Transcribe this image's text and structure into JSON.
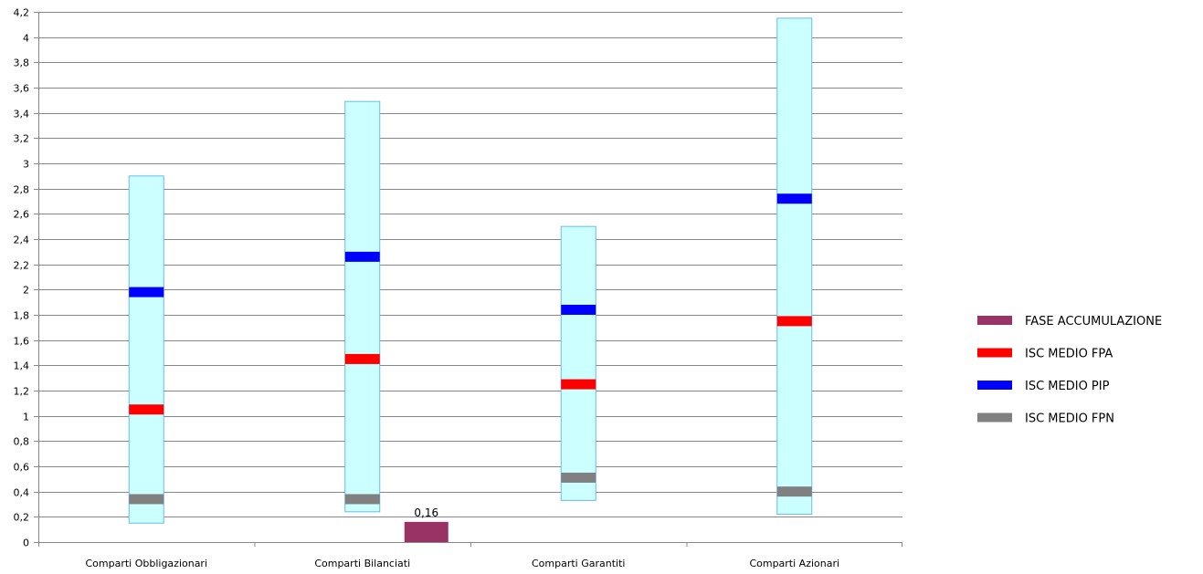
{
  "chart_data": {
    "type": "bar",
    "categories": [
      "Comparti Obbligazionari",
      "Comparti Bilanciati",
      "Comparti Garantiti",
      "Comparti Azionari"
    ],
    "ylim": [
      0,
      4.2
    ],
    "yticks": [
      0,
      0.2,
      0.4,
      0.6,
      0.8,
      1,
      1.2,
      1.4,
      1.6,
      1.8,
      2,
      2.2,
      2.4,
      2.6,
      2.8,
      3,
      3.2,
      3.4,
      3.6,
      3.8,
      4,
      4.2
    ],
    "ytick_labels": [
      "0",
      "0,2",
      "0,4",
      "0,6",
      "0,8",
      "1",
      "1,2",
      "1,4",
      "1,6",
      "1,8",
      "2",
      "2,2",
      "2,4",
      "2,6",
      "2,8",
      "3",
      "3,2",
      "3,4",
      "3,6",
      "3,8",
      "4",
      "4,2"
    ],
    "grid": true,
    "legend_position": "right",
    "ranges": [
      {
        "low": 0.15,
        "high": 2.9
      },
      {
        "low": 0.24,
        "high": 3.49
      },
      {
        "low": 0.33,
        "high": 2.5
      },
      {
        "low": 0.22,
        "high": 4.15
      }
    ],
    "range_color": "#ccffff",
    "range_border": "#66bbee",
    "series": [
      {
        "name": "FASE ACCUMULAZIONE",
        "color": "#993366",
        "kind": "bar",
        "values": [
          null,
          0.16,
          null,
          null
        ],
        "labels": [
          null,
          "0,16",
          null,
          null
        ]
      },
      {
        "name": "ISC MEDIO FPA",
        "color": "#ff0000",
        "kind": "marker",
        "values": [
          1.05,
          1.45,
          1.25,
          1.75
        ]
      },
      {
        "name": "ISC MEDIO PIP",
        "color": "#0000ff",
        "kind": "marker",
        "values": [
          1.98,
          2.26,
          1.84,
          2.72
        ]
      },
      {
        "name": "ISC MEDIO FPN",
        "color": "#808080",
        "kind": "marker",
        "values": [
          0.34,
          0.34,
          0.51,
          0.4
        ]
      }
    ]
  }
}
